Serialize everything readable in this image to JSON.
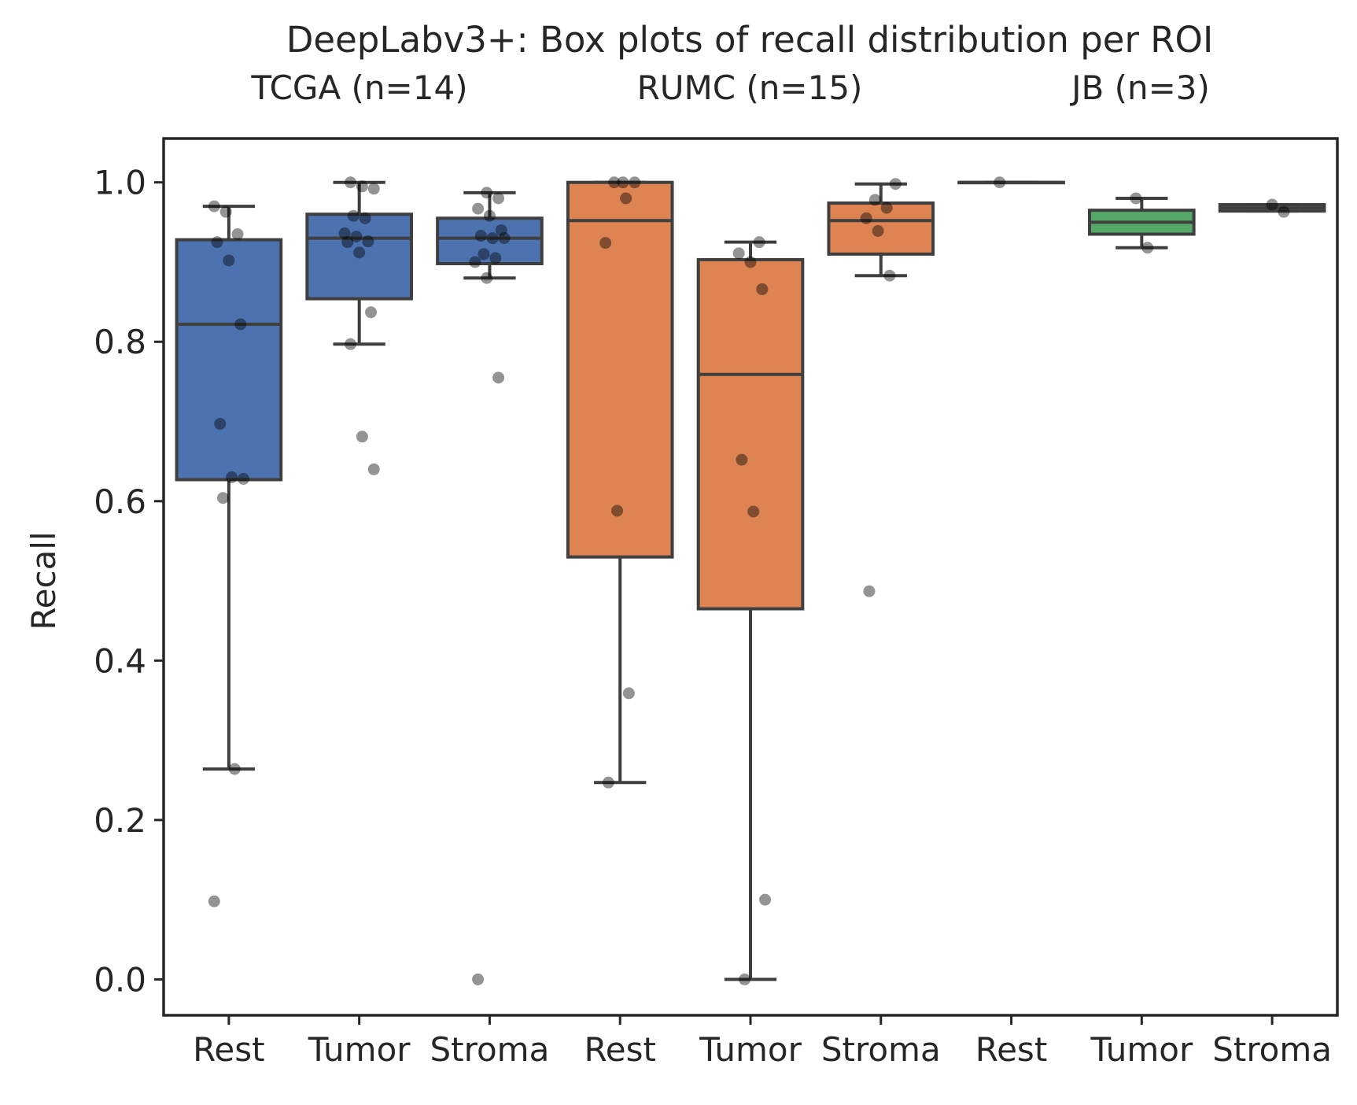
{
  "chart_data": {
    "type": "box",
    "title": "DeepLabv3+: Box plots of recall distribution per ROI",
    "ylabel": "Recall",
    "xlabel": "",
    "ylim": [
      -0.045,
      1.055
    ],
    "yticks": [
      "0.0",
      "0.2",
      "0.4",
      "0.6",
      "0.8",
      "1.0"
    ],
    "grid": false,
    "groups": [
      {
        "label": "TCGA (n=14)",
        "color": "#4c72b0"
      },
      {
        "label": "RUMC (n=15)",
        "color": "#dd8452"
      },
      {
        "label": "JB (n=3)",
        "color": "#55a868"
      }
    ],
    "categories": [
      "Rest",
      "Tumor",
      "Stroma",
      "Rest",
      "Tumor",
      "Stroma",
      "Rest",
      "Tumor",
      "Stroma"
    ],
    "boxes": [
      {
        "group": 0,
        "category": "Rest",
        "q1": 0.627,
        "median": 0.822,
        "q3": 0.928,
        "whisker_low": 0.264,
        "whisker_high": 0.97,
        "points": [
          0.97,
          0.963,
          0.935,
          0.925,
          0.902,
          0.822,
          0.697,
          0.63,
          0.628,
          0.604,
          0.264,
          0.098
        ]
      },
      {
        "group": 0,
        "category": "Tumor",
        "q1": 0.854,
        "median": 0.93,
        "q3": 0.96,
        "whisker_low": 0.797,
        "whisker_high": 1.0,
        "points": [
          1.0,
          0.995,
          0.992,
          0.958,
          0.955,
          0.936,
          0.932,
          0.926,
          0.925,
          0.912,
          0.837,
          0.797,
          0.681,
          0.64
        ]
      },
      {
        "group": 0,
        "category": "Stroma",
        "q1": 0.898,
        "median": 0.93,
        "q3": 0.955,
        "whisker_low": 0.88,
        "whisker_high": 0.987,
        "points": [
          0.987,
          0.98,
          0.967,
          0.958,
          0.94,
          0.933,
          0.93,
          0.93,
          0.91,
          0.905,
          0.9,
          0.88,
          0.755,
          0.0
        ]
      },
      {
        "group": 1,
        "category": "Rest",
        "q1": 0.53,
        "median": 0.952,
        "q3": 1.0,
        "whisker_low": 0.247,
        "whisker_high": 1.0,
        "points": [
          1.0,
          1.0,
          1.0,
          0.98,
          0.924,
          0.588,
          0.359,
          0.247
        ]
      },
      {
        "group": 1,
        "category": "Tumor",
        "q1": 0.465,
        "median": 0.759,
        "q3": 0.903,
        "whisker_low": 0.0,
        "whisker_high": 0.925,
        "points": [
          0.925,
          0.911,
          0.9,
          0.866,
          0.652,
          0.587,
          0.1,
          0.0
        ]
      },
      {
        "group": 1,
        "category": "Stroma",
        "q1": 0.91,
        "median": 0.952,
        "q3": 0.974,
        "whisker_low": 0.883,
        "whisker_high": 0.998,
        "points": [
          0.998,
          0.978,
          0.968,
          0.955,
          0.939,
          0.883,
          0.487
        ]
      },
      {
        "group": 2,
        "category": "Rest",
        "q1": 1.0,
        "median": 1.0,
        "q3": 1.0,
        "whisker_low": 1.0,
        "whisker_high": 1.0,
        "points": [
          1.0
        ]
      },
      {
        "group": 2,
        "category": "Tumor",
        "q1": 0.935,
        "median": 0.95,
        "q3": 0.965,
        "whisker_low": 0.918,
        "whisker_high": 0.98,
        "points": [
          0.98,
          0.918
        ]
      },
      {
        "group": 2,
        "category": "Stroma",
        "q1": 0.964,
        "median": 0.968,
        "q3": 0.972,
        "whisker_low": 0.964,
        "whisker_high": 0.972,
        "points": [
          0.972,
          0.963
        ]
      }
    ]
  }
}
